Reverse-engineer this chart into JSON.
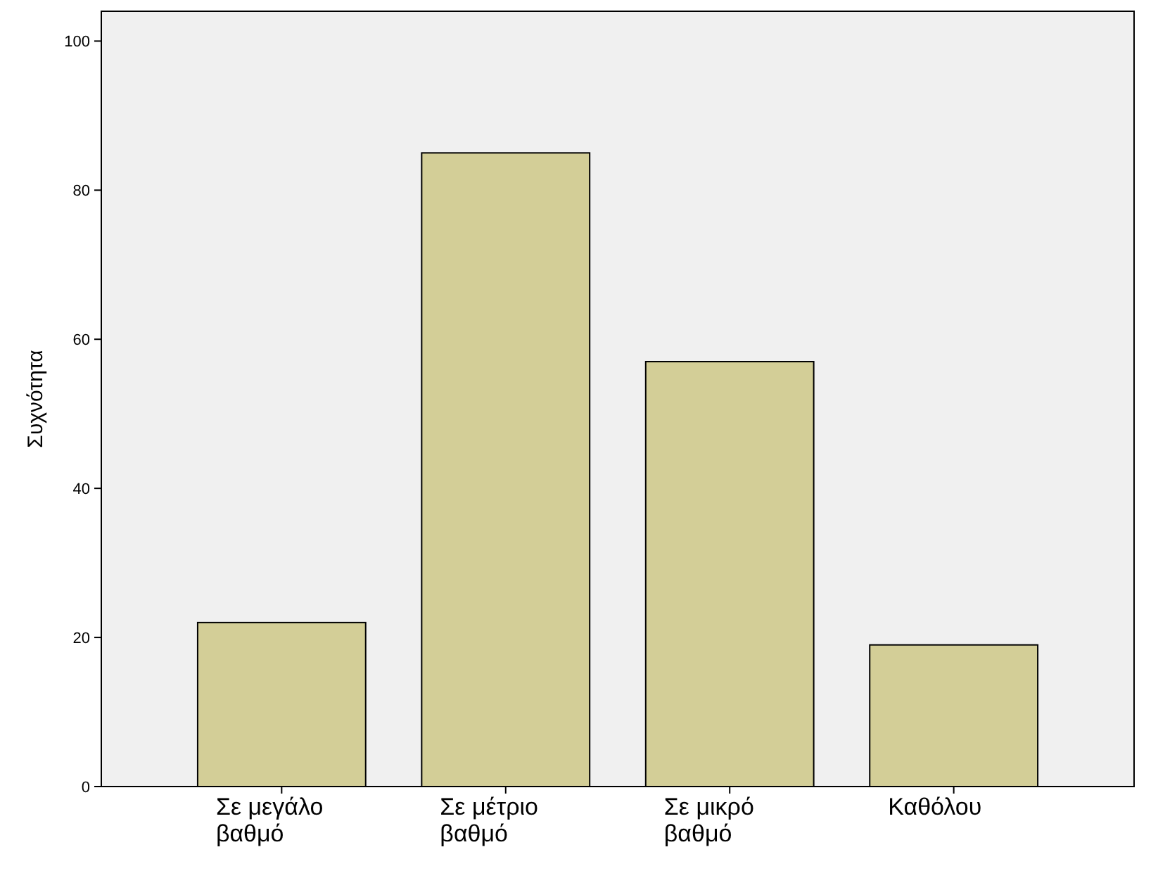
{
  "chart_data": {
    "type": "bar",
    "ylabel": "Συχνότητα",
    "categories": [
      "Σε μεγάλο βαθμό",
      "Σε μέτριο βαθμό",
      "Σε μικρό βαθμό",
      "Καθόλου"
    ],
    "values": [
      22,
      85,
      57,
      19
    ],
    "color": "#d3ce97",
    "ylim": [
      0,
      104
    ],
    "yticks": [
      0,
      20,
      40,
      60,
      80,
      100
    ],
    "grid": false
  }
}
